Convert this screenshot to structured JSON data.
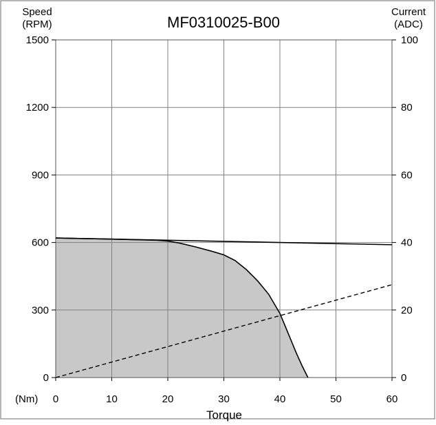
{
  "chart_data": {
    "type": "area",
    "title": "MF0310025-B00",
    "xlabel": "Torque",
    "x_unit_label": "(Nm)",
    "ylabel_left": [
      "Speed",
      "(RPM)"
    ],
    "ylabel_right": [
      "Current",
      "(ADC)"
    ],
    "xlim": [
      0,
      60
    ],
    "ylim_left": [
      0,
      1500
    ],
    "ylim_right": [
      0,
      100
    ],
    "x_ticks": [
      0,
      10,
      20,
      30,
      40,
      50,
      60
    ],
    "y_left_ticks": [
      0,
      300,
      600,
      900,
      1200,
      1500
    ],
    "y_right_ticks": [
      0,
      20,
      40,
      60,
      80,
      100
    ],
    "grid": true,
    "series": [
      {
        "role": "operating region boundary (speed, shaded)",
        "axis": "left",
        "style": "solid-filled",
        "x": [
          0,
          10,
          18,
          20,
          22,
          25,
          28,
          30,
          32,
          34,
          36,
          38,
          40,
          41,
          42,
          43,
          44,
          45
        ],
        "y": [
          620,
          615,
          610,
          606,
          598,
          580,
          560,
          545,
          520,
          480,
          430,
          370,
          285,
          225,
          165,
          105,
          50,
          0
        ]
      },
      {
        "role": "continuous speed line",
        "axis": "left",
        "style": "solid",
        "x": [
          0,
          60
        ],
        "y": [
          620,
          590
        ]
      },
      {
        "role": "current vs torque",
        "axis": "right",
        "style": "dashed",
        "x": [
          0,
          60
        ],
        "y": [
          0,
          27.5
        ]
      }
    ],
    "colors": {
      "fill": "#c8c8c8",
      "line": "#000000",
      "grid": "#808080",
      "frame": "#6e6e6e"
    }
  }
}
